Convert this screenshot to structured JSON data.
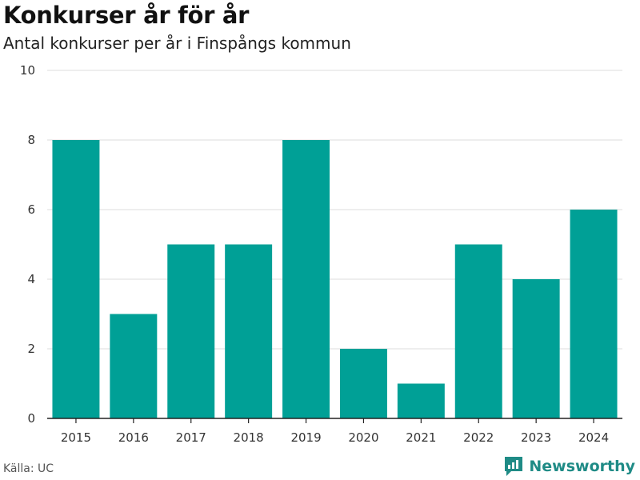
{
  "header": {
    "title": "Konkurser år för år",
    "subtitle": "Antal konkurser per år i Finspångs kommun"
  },
  "footer": {
    "source": "Källa: UC",
    "brand": "Newsworthy",
    "brand_color": "#1f8b86"
  },
  "chart_data": {
    "type": "bar",
    "title": "Konkurser år för år",
    "subtitle": "Antal konkurser per år i Finspångs kommun",
    "categories": [
      "2015",
      "2016",
      "2017",
      "2018",
      "2019",
      "2020",
      "2021",
      "2022",
      "2023",
      "2024"
    ],
    "values": [
      8,
      3,
      5,
      5,
      8,
      2,
      1,
      5,
      4,
      6
    ],
    "ylim": [
      0,
      10
    ],
    "yticks": [
      0,
      2,
      4,
      6,
      8,
      10
    ],
    "xlabel": "",
    "ylabel": "",
    "grid": true,
    "bar_color": "#00a096"
  }
}
